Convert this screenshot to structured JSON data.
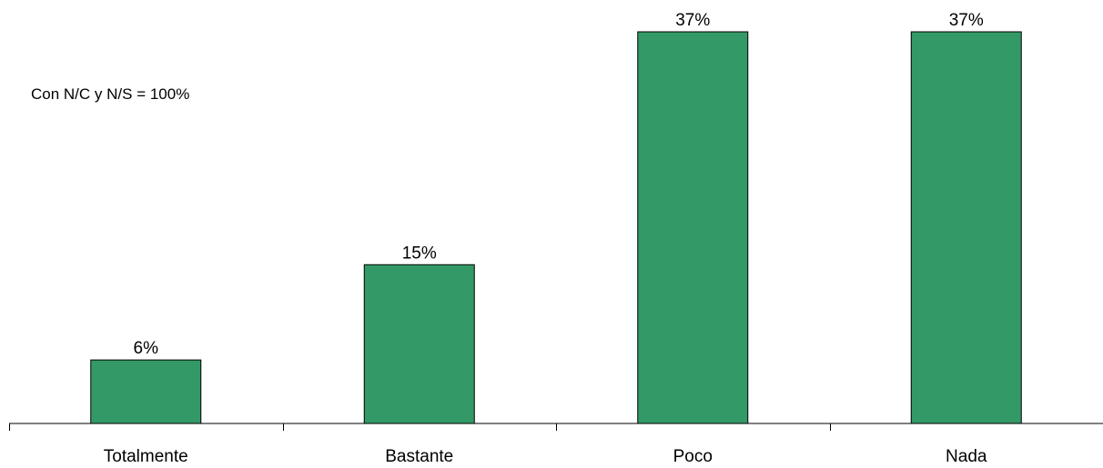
{
  "chart_data": {
    "type": "bar",
    "categories": [
      "Totalmente",
      "Bastante",
      "Poco",
      "Nada"
    ],
    "values": [
      6,
      15,
      37,
      37
    ],
    "value_labels": [
      "6%",
      "15%",
      "37%",
      "37%"
    ],
    "annotation": "Con N/C y N/S = 100%",
    "ylim": [
      0,
      37
    ],
    "grid": false,
    "legend": "none",
    "bar_color": "#339966",
    "bar_stroke": "#000000"
  }
}
